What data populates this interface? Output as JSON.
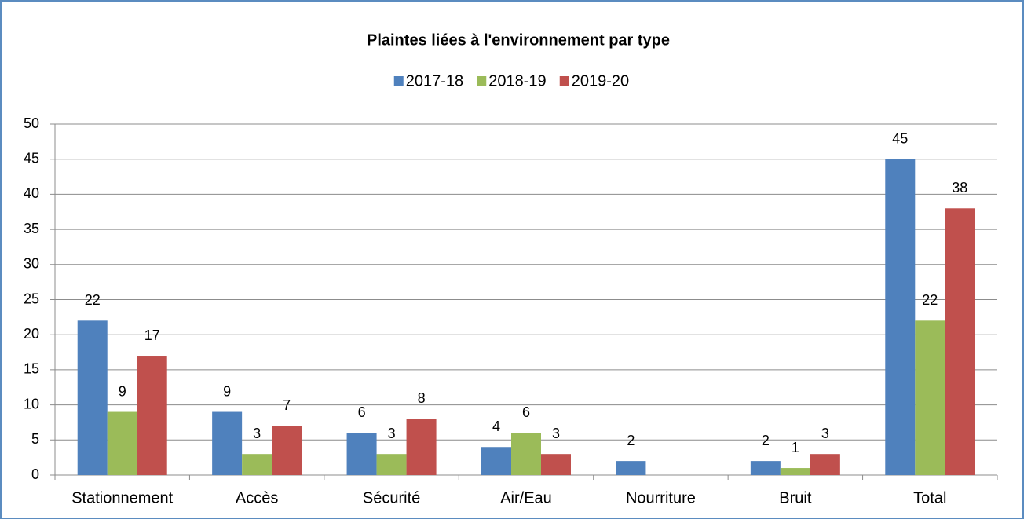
{
  "chart_data": {
    "type": "bar",
    "title": "Plaintes liées à l'environnement par type",
    "categories": [
      "Stationnement",
      "Accès",
      "Sécurité",
      "Air/Eau",
      "Nourriture",
      "Bruit",
      "Total"
    ],
    "series": [
      {
        "name": "2017-18",
        "color": "#4f81bd",
        "values": [
          22,
          9,
          6,
          4,
          2,
          2,
          45
        ]
      },
      {
        "name": "2018-19",
        "color": "#9bbb59",
        "values": [
          9,
          3,
          3,
          6,
          null,
          1,
          22
        ]
      },
      {
        "name": "2019-20",
        "color": "#c0504d",
        "values": [
          17,
          7,
          8,
          3,
          null,
          3,
          38
        ]
      }
    ],
    "ylim": [
      0,
      50
    ],
    "yticks": [
      0,
      5,
      10,
      15,
      20,
      25,
      30,
      35,
      40,
      45,
      50
    ],
    "grid": true,
    "legend": "top"
  }
}
